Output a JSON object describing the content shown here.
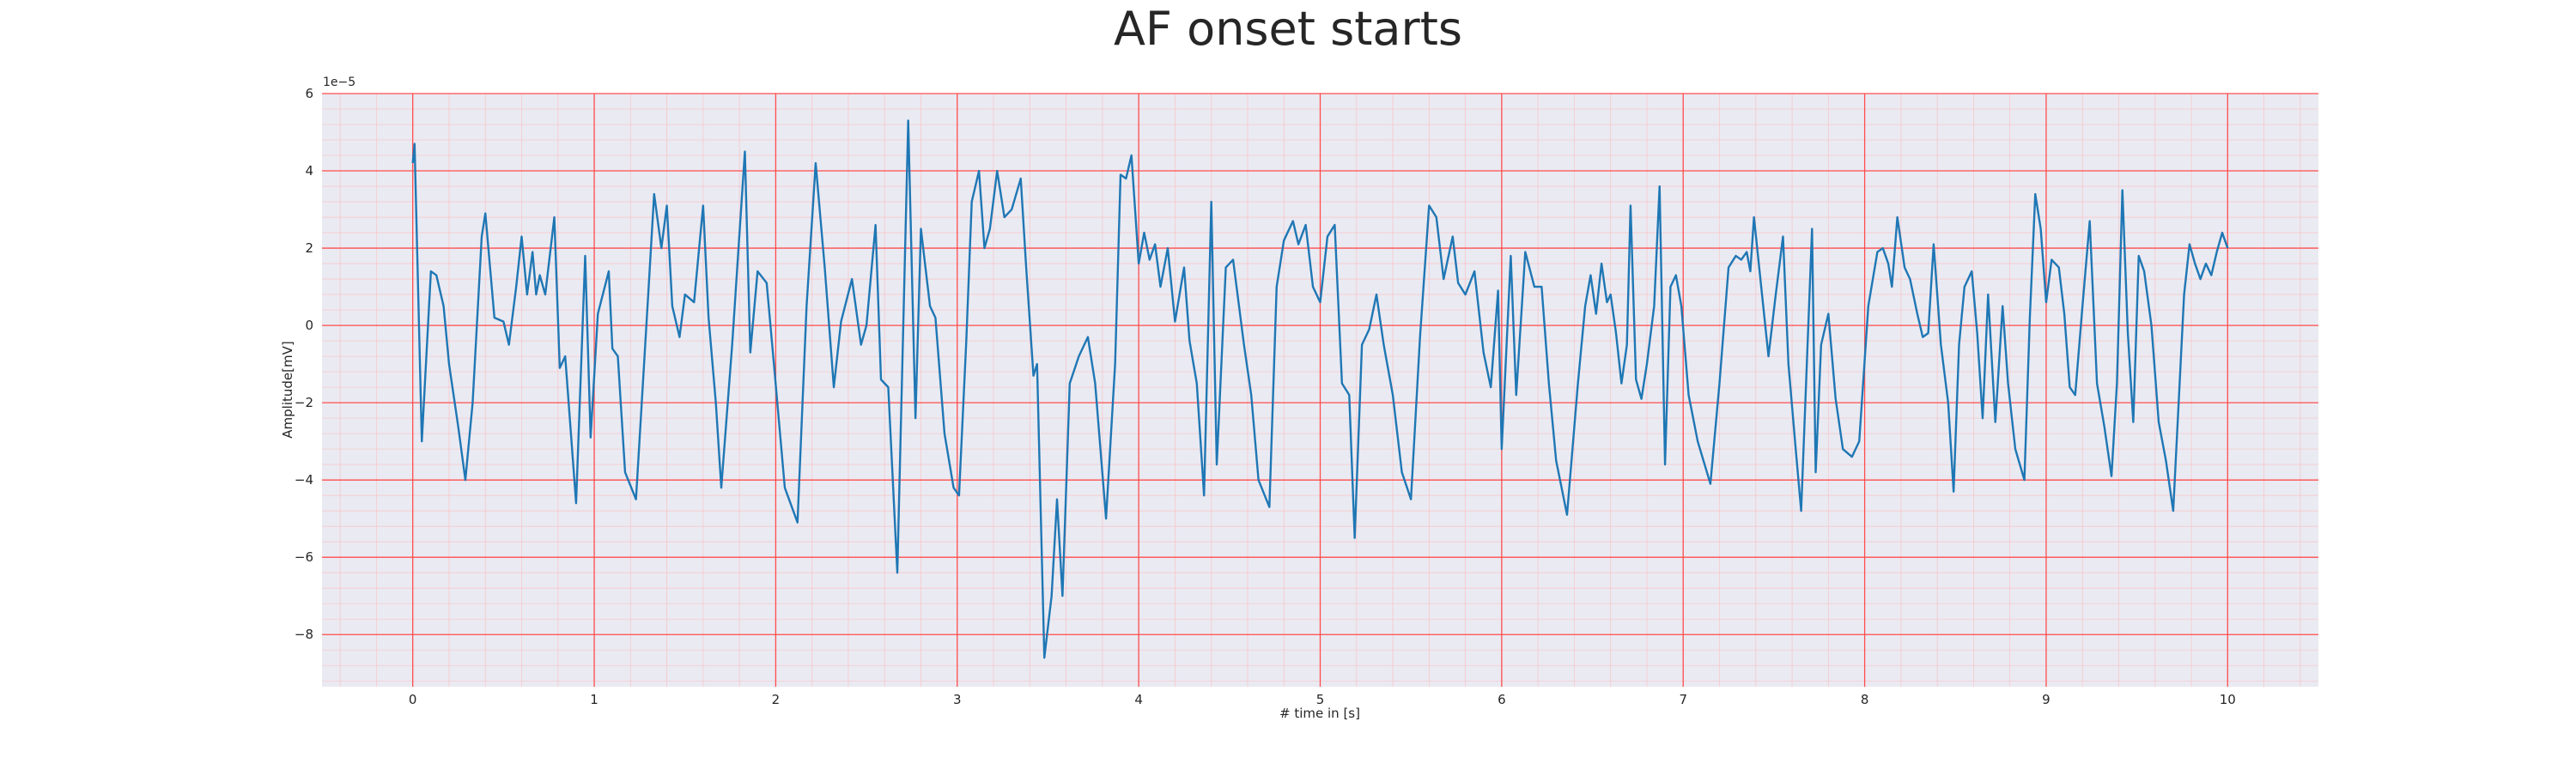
{
  "chart_data": {
    "type": "line",
    "title": "AF onset starts",
    "xlabel": "# time in [s]",
    "ylabel": "Amplitude[mV]",
    "y_offset_label": "1e−5",
    "x": [
      0,
      0.01,
      0.05,
      0.1,
      0.13,
      0.17,
      0.2,
      0.25,
      0.29,
      0.33,
      0.38,
      0.4,
      0.45,
      0.5,
      0.53,
      0.57,
      0.6,
      0.63,
      0.66,
      0.68,
      0.7,
      0.73,
      0.78,
      0.81,
      0.84,
      0.9,
      0.95,
      0.98,
      1.02,
      1.08,
      1.1,
      1.13,
      1.17,
      1.23,
      1.3,
      1.33,
      1.37,
      1.4,
      1.43,
      1.47,
      1.5,
      1.55,
      1.6,
      1.63,
      1.67,
      1.7,
      1.76,
      1.83,
      1.86,
      1.9,
      1.95,
      1.99,
      2.05,
      2.12,
      2.17,
      2.22,
      2.27,
      2.32,
      2.36,
      2.42,
      2.47,
      2.5,
      2.55,
      2.58,
      2.62,
      2.67,
      2.73,
      2.77,
      2.8,
      2.85,
      2.88,
      2.93,
      2.98,
      3.01,
      3.05,
      3.08,
      3.12,
      3.15,
      3.18,
      3.22,
      3.26,
      3.3,
      3.35,
      3.38,
      3.42,
      3.44,
      3.48,
      3.52,
      3.55,
      3.58,
      3.62,
      3.67,
      3.72,
      3.76,
      3.82,
      3.87,
      3.9,
      3.93,
      3.96,
      4.0,
      4.03,
      4.06,
      4.09,
      4.12,
      4.16,
      4.2,
      4.25,
      4.28,
      4.32,
      4.36,
      4.4,
      4.43,
      4.48,
      4.52,
      4.58,
      4.62,
      4.66,
      4.72,
      4.76,
      4.8,
      4.85,
      4.88,
      4.92,
      4.96,
      5.0,
      5.04,
      5.08,
      5.12,
      5.16,
      5.19,
      5.23,
      5.27,
      5.31,
      5.35,
      5.4,
      5.45,
      5.5,
      5.55,
      5.6,
      5.64,
      5.68,
      5.73,
      5.76,
      5.8,
      5.85,
      5.9,
      5.94,
      5.98,
      6.0,
      6.05,
      6.08,
      6.13,
      6.18,
      6.22,
      6.26,
      6.3,
      6.36,
      6.42,
      6.46,
      6.49,
      6.52,
      6.55,
      6.58,
      6.6,
      6.63,
      6.66,
      6.69,
      6.71,
      6.74,
      6.77,
      6.8,
      6.84,
      6.87,
      6.9,
      6.93,
      6.96,
      6.99,
      7.03,
      7.08,
      7.15,
      7.2,
      7.25,
      7.29,
      7.32,
      7.35,
      7.37,
      7.39,
      7.43,
      7.47,
      7.51,
      7.55,
      7.58,
      7.62,
      7.65,
      7.71,
      7.73,
      7.76,
      7.8,
      7.84,
      7.88,
      7.93,
      7.97,
      8.02,
      8.07,
      8.1,
      8.13,
      8.15,
      8.18,
      8.22,
      8.25,
      8.29,
      8.32,
      8.35,
      8.38,
      8.42,
      8.46,
      8.49,
      8.52,
      8.55,
      8.59,
      8.62,
      8.65,
      8.68,
      8.72,
      8.76,
      8.79,
      8.83,
      8.88,
      8.91,
      8.94,
      8.97,
      9.0,
      9.03,
      9.07,
      9.1,
      9.13,
      9.16,
      9.2,
      9.24,
      9.28,
      9.32,
      9.36,
      9.39,
      9.42,
      9.45,
      9.48,
      9.51,
      9.54,
      9.58,
      9.62,
      9.66,
      9.7,
      9.73,
      9.76,
      9.79,
      9.82,
      9.85,
      9.88,
      9.91,
      9.94,
      9.97,
      10.0
    ],
    "values": [
      4.2,
      4.7,
      -3.0,
      1.4,
      1.3,
      0.5,
      -1.0,
      -2.6,
      -4.0,
      -2.0,
      2.3,
      2.9,
      0.2,
      0.1,
      -0.5,
      1.0,
      2.3,
      0.8,
      1.9,
      0.8,
      1.3,
      0.8,
      2.8,
      -1.1,
      -0.8,
      -4.6,
      1.8,
      -2.9,
      0.3,
      1.4,
      -0.6,
      -0.8,
      -3.8,
      -4.5,
      1.0,
      3.4,
      2.0,
      3.1,
      0.5,
      -0.3,
      0.8,
      0.6,
      3.1,
      0.2,
      -2.0,
      -4.2,
      -0.5,
      4.5,
      -0.7,
      1.4,
      1.1,
      -1.0,
      -4.2,
      -5.1,
      0.5,
      4.2,
      1.5,
      -1.6,
      0.1,
      1.2,
      -0.5,
      0.0,
      2.6,
      -1.4,
      -1.6,
      -6.4,
      5.3,
      -2.4,
      2.5,
      0.5,
      0.2,
      -2.8,
      -4.2,
      -4.4,
      -0.4,
      3.2,
      4.0,
      2.0,
      2.5,
      4.0,
      2.8,
      3.0,
      3.8,
      1.5,
      -1.3,
      -1.0,
      -8.6,
      -7.0,
      -4.5,
      -7.0,
      -1.5,
      -0.8,
      -0.3,
      -1.5,
      -5.0,
      -1.0,
      3.9,
      3.8,
      4.4,
      1.6,
      2.4,
      1.7,
      2.1,
      1.0,
      2.0,
      0.1,
      1.5,
      -0.4,
      -1.5,
      -4.4,
      3.2,
      -3.6,
      1.5,
      1.7,
      -0.5,
      -1.8,
      -4.0,
      -4.7,
      1.0,
      2.2,
      2.7,
      2.1,
      2.6,
      1.0,
      0.6,
      2.3,
      2.6,
      -1.5,
      -1.8,
      -5.5,
      -0.5,
      -0.1,
      0.8,
      -0.5,
      -1.8,
      -3.8,
      -4.5,
      -0.3,
      3.1,
      2.8,
      1.2,
      2.3,
      1.1,
      0.8,
      1.4,
      -0.7,
      -1.6,
      0.9,
      -3.2,
      1.8,
      -1.8,
      1.9,
      1.0,
      1.0,
      -1.5,
      -3.5,
      -4.9,
      -1.5,
      0.5,
      1.3,
      0.3,
      1.6,
      0.6,
      0.8,
      -0.2,
      -1.5,
      -0.5,
      3.1,
      -1.4,
      -1.9,
      -1.0,
      0.5,
      3.6,
      -3.6,
      1.0,
      1.3,
      0.5,
      -1.8,
      -3.0,
      -4.1,
      -1.5,
      1.5,
      1.8,
      1.7,
      1.9,
      1.4,
      2.8,
      1.0,
      -0.8,
      0.8,
      2.3,
      -1.0,
      -3.2,
      -4.8,
      2.5,
      -3.8,
      -0.5,
      0.3,
      -1.9,
      -3.2,
      -3.4,
      -3.0,
      0.5,
      1.9,
      2.0,
      1.6,
      1.0,
      2.8,
      1.5,
      1.2,
      0.3,
      -0.3,
      -0.2,
      2.1,
      -0.5,
      -2.0,
      -4.3,
      -0.5,
      1.0,
      1.4,
      -0.2,
      -2.4,
      0.8,
      -2.5,
      0.5,
      -1.5,
      -3.2,
      -4.0,
      0.2,
      3.4,
      2.5,
      0.6,
      1.7,
      1.5,
      0.3,
      -1.6,
      -1.8,
      0.5,
      2.7,
      -1.5,
      -2.6,
      -3.9,
      -1.5,
      3.5,
      -0.2,
      -2.5,
      1.8,
      1.4,
      0.0,
      -2.5,
      -3.5,
      -4.8,
      -2.0,
      0.8,
      2.1,
      1.6,
      1.2,
      1.6,
      1.3,
      1.9,
      2.4,
      2.0
    ],
    "color": "#1f77b4",
    "xlim": [
      -0.5,
      10.5
    ],
    "xticks": [
      0,
      1,
      2,
      3,
      4,
      5,
      6,
      7,
      8,
      9,
      10
    ],
    "ylim": [
      -9.35,
      6
    ],
    "yticks": [
      {
        "value": -8,
        "label": "−8"
      },
      {
        "value": -6,
        "label": "−6"
      },
      {
        "value": -4,
        "label": "−4"
      },
      {
        "value": -2,
        "label": "−2"
      },
      0,
      2,
      4,
      6
    ],
    "grid": true,
    "minor_grid": true
  }
}
